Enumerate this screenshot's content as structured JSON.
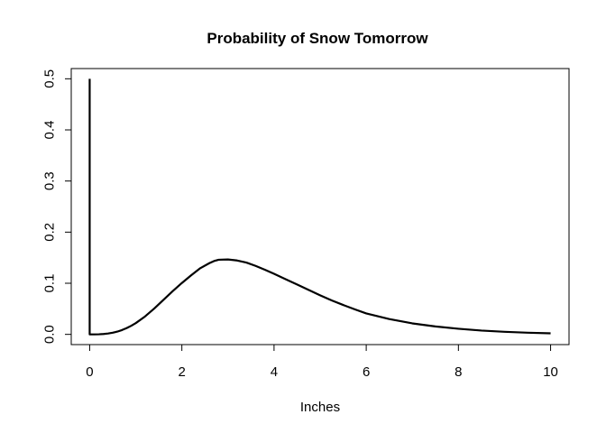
{
  "chart_data": {
    "type": "line",
    "title": "Probability of Snow Tomorrow",
    "xlabel": "Inches",
    "ylabel": "",
    "xlim": [
      -0.4,
      10.4
    ],
    "ylim": [
      -0.02,
      0.52
    ],
    "xticks": [
      0,
      2,
      4,
      6,
      8,
      10
    ],
    "yticks": [
      0.0,
      0.1,
      0.2,
      0.3,
      0.4,
      0.5
    ],
    "xtick_labels": [
      "0",
      "2",
      "4",
      "6",
      "8",
      "10"
    ],
    "ytick_labels": [
      "0.0",
      "0.1",
      "0.2",
      "0.3",
      "0.4",
      "0.5"
    ],
    "grid": false,
    "legend": "none",
    "line_color": "#000000",
    "series": [
      {
        "x": [
          0,
          0,
          0.1,
          0.2,
          0.3,
          0.4,
          0.5,
          0.6,
          0.7,
          0.8,
          0.9,
          1.0,
          1.2,
          1.4,
          1.6,
          1.8,
          2.0,
          2.2,
          2.4,
          2.6,
          2.7,
          2.8,
          3.0,
          3.2,
          3.4,
          3.6,
          3.8,
          4.0,
          4.25,
          4.5,
          4.75,
          5.0,
          5.25,
          5.5,
          5.75,
          6.0,
          6.5,
          7.0,
          7.5,
          8.0,
          8.5,
          9.0,
          9.5,
          10.0
        ],
        "y": [
          0.5,
          0.0,
          0.0,
          0.0002,
          0.0007,
          0.0017,
          0.0032,
          0.0054,
          0.0084,
          0.0122,
          0.0167,
          0.022,
          0.035,
          0.0505,
          0.0675,
          0.0845,
          0.1005,
          0.1155,
          0.1295,
          0.1395,
          0.1435,
          0.146,
          0.1465,
          0.1445,
          0.1405,
          0.134,
          0.1265,
          0.1185,
          0.108,
          0.0975,
          0.087,
          0.0765,
          0.0665,
          0.0575,
          0.049,
          0.041,
          0.03,
          0.0215,
          0.0155,
          0.011,
          0.0075,
          0.005,
          0.0033,
          0.002
        ]
      }
    ]
  }
}
